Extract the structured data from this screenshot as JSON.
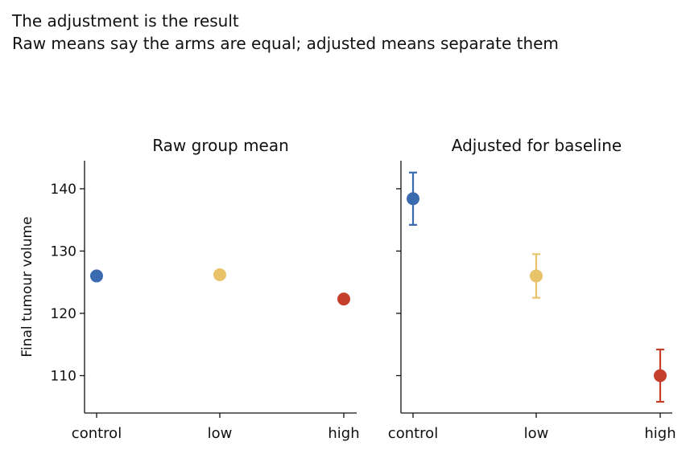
{
  "header": {
    "title": "The adjustment is the result",
    "subtitle": "Raw means say the arms are equal; adjusted means separate them"
  },
  "colors": {
    "control": "#3a6bb0",
    "low": "#e8c36a",
    "high": "#c63f2a",
    "axis": "#111111"
  },
  "chart_data": [
    {
      "type": "scatter",
      "title": "Raw group mean",
      "xlabel": "",
      "ylabel": "Final tumour volume",
      "categories": [
        "control",
        "low",
        "high"
      ],
      "values": [
        126.0,
        126.2,
        122.3
      ],
      "error": null,
      "ylim": [
        104,
        144.5
      ],
      "yticks": [
        110,
        120,
        130,
        140
      ],
      "grid": false,
      "point_colors": [
        "#3a6bb0",
        "#e8c36a",
        "#c63f2a"
      ]
    },
    {
      "type": "scatter",
      "title": "Adjusted for baseline",
      "xlabel": "",
      "ylabel": "",
      "categories": [
        "control",
        "low",
        "high"
      ],
      "values": [
        138.4,
        126.0,
        110.0
      ],
      "error": [
        [
          134.2,
          142.6
        ],
        [
          122.5,
          129.5
        ],
        [
          105.8,
          114.2
        ]
      ],
      "ylim": [
        104,
        144.5
      ],
      "yticks": [
        110,
        120,
        130,
        140
      ],
      "grid": false,
      "point_colors": [
        "#3a6bb0",
        "#e8c36a",
        "#c63f2a"
      ]
    }
  ]
}
